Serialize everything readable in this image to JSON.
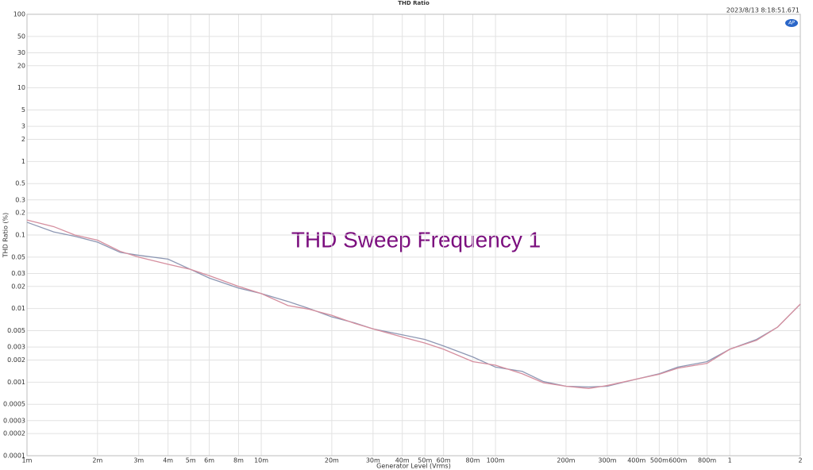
{
  "chart_data": {
    "type": "line",
    "title": "THD Ratio",
    "subtitle": "2023/8/13 8:18:51.671",
    "annotation": "THD Sweep Frequency 1",
    "x_label": "Generator Level (Vrms)",
    "y_label": "THD Ratio (%)",
    "xscale": "log",
    "yscale": "log",
    "grid": true,
    "x": [
      0.001,
      0.0013,
      0.0016,
      0.002,
      0.0025,
      0.003,
      0.004,
      0.005,
      0.006,
      0.008,
      0.01,
      0.013,
      0.016,
      0.02,
      0.025,
      0.03,
      0.04,
      0.05,
      0.06,
      0.08,
      0.1,
      0.13,
      0.16,
      0.2,
      0.25,
      0.3,
      0.4,
      0.5,
      0.6,
      0.8,
      1,
      1.3,
      1.6,
      2
    ],
    "series": [
      {
        "color": "#8d97b3",
        "values": [
          0.149,
          0.11,
          0.096,
          0.08,
          0.058,
          0.053,
          0.047,
          0.034,
          0.026,
          0.019,
          0.016,
          0.0125,
          0.01,
          0.0077,
          0.0064,
          0.0053,
          0.0044,
          0.0038,
          0.0031,
          0.0022,
          0.0016,
          0.0014,
          0.00102,
          0.00088,
          0.00086,
          0.00088,
          0.0011,
          0.0013,
          0.0016,
          0.0019,
          0.0028,
          0.0038,
          0.0056,
          0.0115
        ]
      },
      {
        "color": "#d58e9e",
        "values": [
          0.16,
          0.13,
          0.1,
          0.085,
          0.06,
          0.05,
          0.04,
          0.034,
          0.028,
          0.02,
          0.016,
          0.011,
          0.0098,
          0.0081,
          0.0063,
          0.0053,
          0.0041,
          0.0034,
          0.0028,
          0.0019,
          0.0017,
          0.0013,
          0.00098,
          0.00088,
          0.00082,
          0.0009,
          0.0011,
          0.00128,
          0.00155,
          0.0018,
          0.0028,
          0.0037,
          0.0056,
          0.0115
        ]
      }
    ],
    "xlim": [
      0.001,
      2
    ],
    "ylim": [
      0.0001,
      100
    ],
    "xticks": [
      {
        "value": 0.001,
        "label": "1m"
      },
      {
        "value": 0.002,
        "label": "2m"
      },
      {
        "value": 0.003,
        "label": "3m"
      },
      {
        "value": 0.004,
        "label": "4m"
      },
      {
        "value": 0.005,
        "label": "5m"
      },
      {
        "value": 0.006,
        "label": "6m"
      },
      {
        "value": 0.008,
        "label": "8m"
      },
      {
        "value": 0.01,
        "label": "10m"
      },
      {
        "value": 0.02,
        "label": "20m"
      },
      {
        "value": 0.03,
        "label": "30m"
      },
      {
        "value": 0.04,
        "label": "40m"
      },
      {
        "value": 0.05,
        "label": "50m"
      },
      {
        "value": 0.06,
        "label": "60m"
      },
      {
        "value": 0.08,
        "label": "80m"
      },
      {
        "value": 0.1,
        "label": "100m"
      },
      {
        "value": 0.2,
        "label": "200m"
      },
      {
        "value": 0.3,
        "label": "300m"
      },
      {
        "value": 0.4,
        "label": "400m"
      },
      {
        "value": 0.5,
        "label": "500m"
      },
      {
        "value": 0.6,
        "label": "600m"
      },
      {
        "value": 0.8,
        "label": "800m"
      },
      1,
      2
    ],
    "yticks": [
      100,
      50,
      30,
      20,
      10,
      5,
      3,
      2,
      1,
      0.5,
      0.3,
      0.2,
      0.1,
      0.05,
      0.03,
      0.02,
      0.01,
      0.005,
      0.003,
      0.002,
      0.001,
      0.0005,
      0.0003,
      0.0002,
      0.0001
    ]
  }
}
